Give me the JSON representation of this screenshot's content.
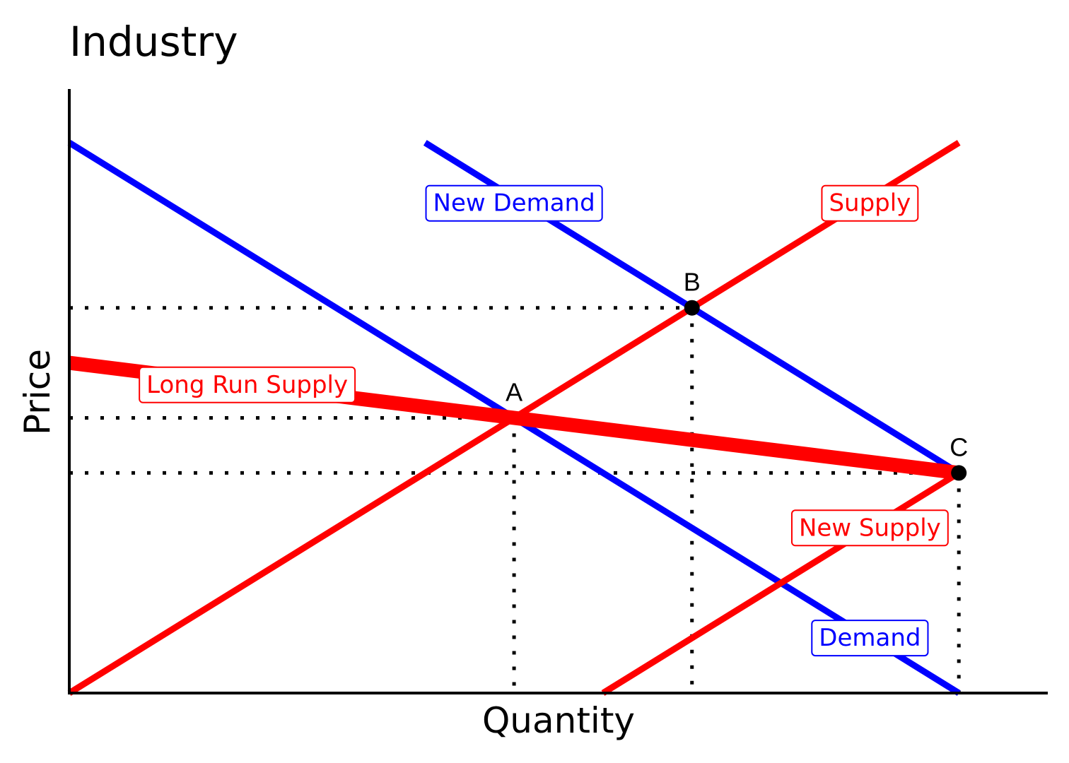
{
  "chart_data": {
    "type": "line",
    "title": "Industry",
    "xlabel": "Quantity",
    "ylabel": "Price",
    "xlim": [
      0,
      100
    ],
    "ylim": [
      0,
      100
    ],
    "grid": false,
    "series": [
      {
        "name": "Demand",
        "color": "#0000ff",
        "x": [
          0,
          90
        ],
        "y": [
          100,
          0
        ],
        "label_at": [
          81,
          10
        ]
      },
      {
        "name": "New Demand",
        "color": "#0000ff",
        "x": [
          36,
          90
        ],
        "y": [
          100,
          40
        ],
        "label_at": [
          45,
          89
        ]
      },
      {
        "name": "Supply",
        "color": "#ff0000",
        "x": [
          0,
          90
        ],
        "y": [
          0,
          100
        ],
        "label_at": [
          81,
          89
        ]
      },
      {
        "name": "New Supply",
        "color": "#ff0000",
        "x": [
          54,
          90
        ],
        "y": [
          0,
          40
        ],
        "label_at": [
          81,
          30
        ]
      },
      {
        "name": "Long Run Supply",
        "color": "#ff0000",
        "x": [
          0,
          90
        ],
        "y": [
          60,
          40
        ],
        "label_at": [
          18,
          56
        ],
        "thick": true
      }
    ],
    "points": [
      {
        "label": "A",
        "x": 45,
        "y": 50,
        "marker": false
      },
      {
        "label": "B",
        "x": 63,
        "y": 70,
        "marker": true
      },
      {
        "label": "C",
        "x": 90,
        "y": 40,
        "marker": true
      }
    ],
    "guides": [
      {
        "x": 45,
        "y": 50
      },
      {
        "x": 63,
        "y": 70
      },
      {
        "x": 90,
        "y": 40
      }
    ]
  }
}
